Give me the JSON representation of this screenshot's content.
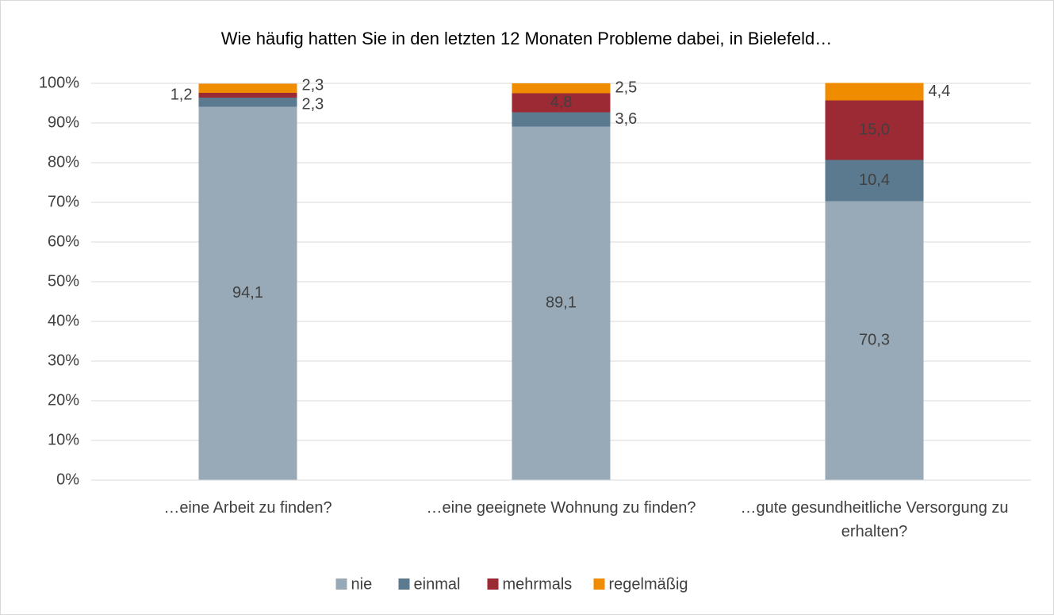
{
  "chart_data": {
    "type": "stacked_bar",
    "title": "Wie häufig hatten Sie in den letzten 12 Monaten Probleme dabei, in Bielefeld…",
    "categories": [
      "…eine Arbeit zu finden?",
      "…eine geeignete Wohnung zu finden?",
      "…gute gesundheitliche Versorgung zu erhalten?"
    ],
    "series": [
      {
        "name": "nie",
        "color": "#98a9b7",
        "values": [
          94.1,
          89.1,
          70.3
        ],
        "value_labels": [
          "94,1",
          "89,1",
          "70,3"
        ]
      },
      {
        "name": "einmal",
        "color": "#5b7a8f",
        "values": [
          2.3,
          3.6,
          10.4
        ],
        "value_labels": [
          "2,3",
          "3,6",
          "10,4"
        ]
      },
      {
        "name": "mehrmals",
        "color": "#9b2a35",
        "values": [
          1.2,
          4.8,
          15.0
        ],
        "value_labels": [
          "1,2",
          "4,8",
          "15,0"
        ]
      },
      {
        "name": "regelmäßig",
        "color": "#f08c00",
        "values": [
          2.3,
          2.5,
          4.4
        ],
        "value_labels": [
          "2,3",
          "2,5",
          "4,4"
        ]
      }
    ],
    "ylim": [
      0,
      100
    ],
    "yticks": [
      {
        "value": 0,
        "label": "0%"
      },
      {
        "value": 10,
        "label": "10%"
      },
      {
        "value": 20,
        "label": "20%"
      },
      {
        "value": 30,
        "label": "30%"
      },
      {
        "value": 40,
        "label": "40%"
      },
      {
        "value": 50,
        "label": "50%"
      },
      {
        "value": 60,
        "label": "60%"
      },
      {
        "value": 70,
        "label": "70%"
      },
      {
        "value": 80,
        "label": "80%"
      },
      {
        "value": 90,
        "label": "90%"
      },
      {
        "value": 100,
        "label": "100%"
      }
    ],
    "grid": true,
    "legend": "bottom"
  }
}
